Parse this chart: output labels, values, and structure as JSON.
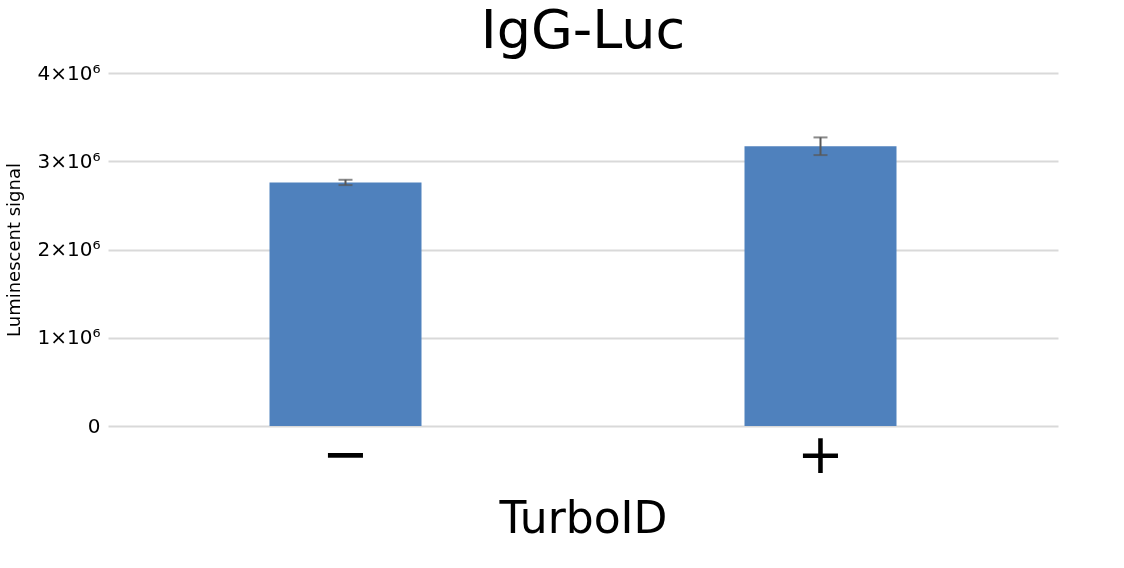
{
  "chart_data": {
    "type": "bar",
    "title": "IgG-Luc",
    "xlabel": "TurboID",
    "ylabel": "Luminescent signal",
    "categories": [
      "−",
      "+"
    ],
    "values": [
      2760000,
      3170000
    ],
    "errors": [
      30000,
      100000
    ],
    "color": "#4f81bd",
    "ylim": [
      0,
      4000000
    ],
    "yticks": [
      0,
      {
        "value": 1000000,
        "label": "1×10⁶"
      },
      {
        "value": 2000000,
        "label": "2×10⁶"
      },
      {
        "value": 3000000,
        "label": "3×10⁶"
      },
      {
        "value": 4000000,
        "label": "4×10⁶"
      }
    ],
    "grid": "y"
  }
}
